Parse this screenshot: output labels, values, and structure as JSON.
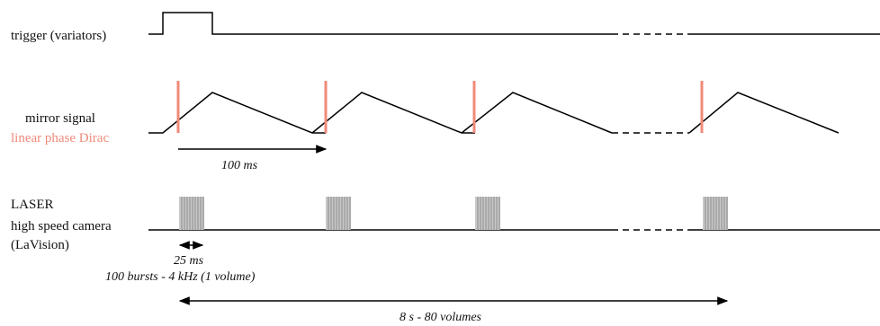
{
  "rows": {
    "trigger": {
      "label": "trigger (variators)"
    },
    "mirror": {
      "label": "mirror signal",
      "sublabel": "linear phase Dirac"
    },
    "laser": {
      "label_line1": "LASER",
      "label_line2": "high speed camera",
      "label_line3": "(LaVision)"
    }
  },
  "annotations": {
    "period": "100 ms",
    "burst_duration": "25 ms",
    "burst_info": "100 bursts - 4 kHz (1 volume)",
    "total": "8 s - 80 volumes"
  },
  "colors": {
    "signal": "#000000",
    "dirac": "#f08a7a",
    "burst": "#9a9a9a"
  }
}
